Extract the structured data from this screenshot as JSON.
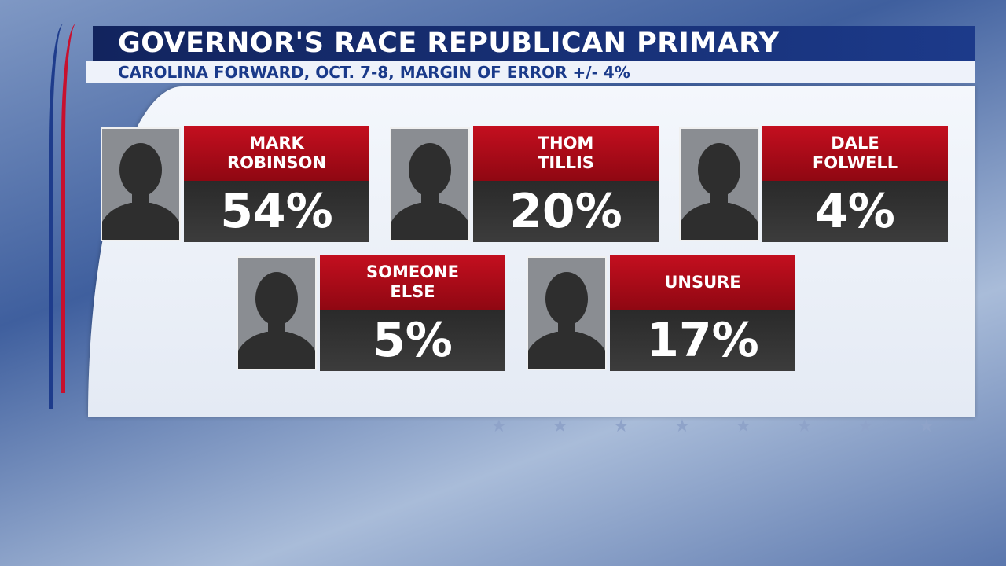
{
  "header": {
    "title": "GOVERNOR'S RACE REPUBLICAN PRIMARY",
    "subtitle": "CAROLINA FORWARD, OCT. 7-8, MARGIN OF ERROR +/- 4%"
  },
  "results": [
    {
      "name": [
        "MARK",
        "ROBINSON"
      ],
      "percent": "54%"
    },
    {
      "name": [
        "THOM",
        "TILLIS"
      ],
      "percent": "20%"
    },
    {
      "name": [
        "DALE",
        "FOLWELL"
      ],
      "percent": "4%"
    },
    {
      "name": [
        "SOMEONE",
        "ELSE"
      ],
      "percent": "5%"
    },
    {
      "name": [
        "UNSURE"
      ],
      "percent": "17%"
    }
  ]
}
